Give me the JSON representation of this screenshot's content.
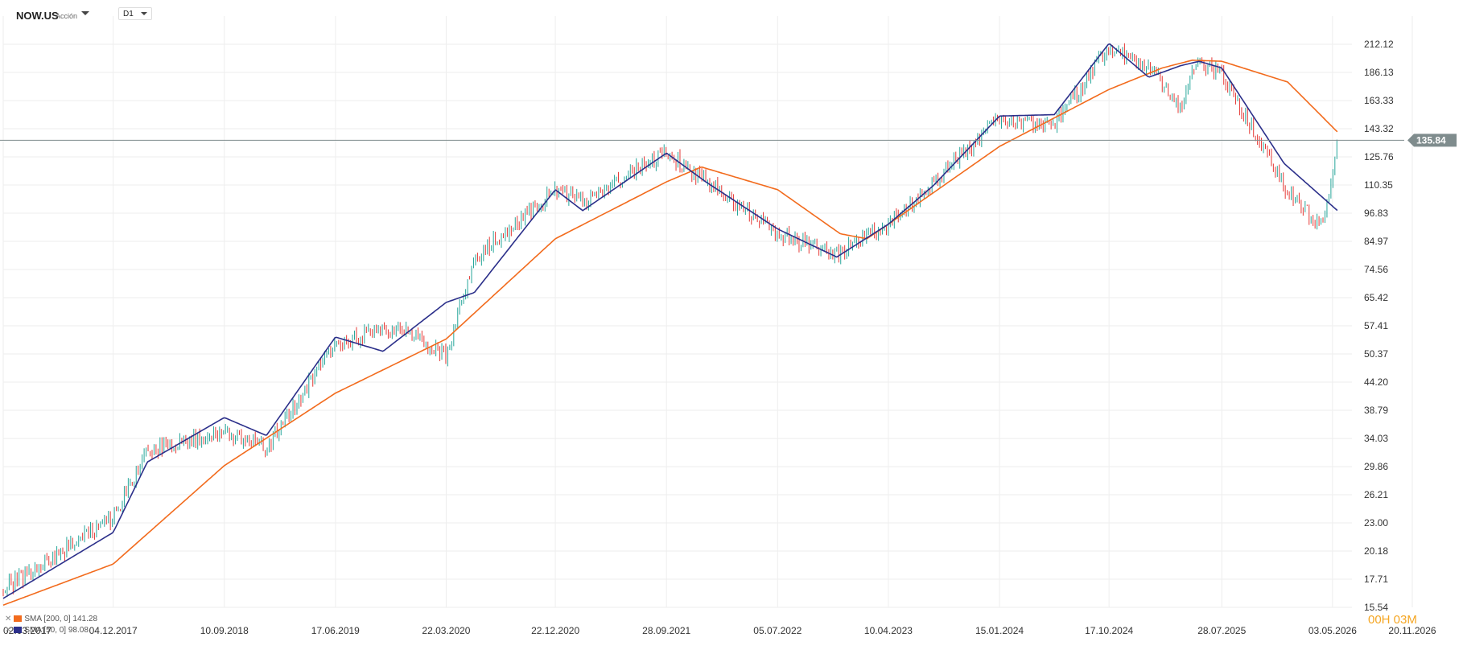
{
  "header": {
    "symbol": "NOW.US",
    "asset_type": "Acción",
    "timeframe": "D1"
  },
  "legend": {
    "sma200": "SMA [200, 0] 141.28",
    "sma50": "SMA [50, 0] 98.08"
  },
  "countdown": "00H 03M",
  "colors": {
    "up": "#26a69a",
    "down": "#e53935",
    "sma200": "#f26b1d",
    "sma50": "#2b2f8a",
    "grid": "#eeeeee",
    "current_price": "#7f8c8d"
  },
  "chart_data": {
    "type": "candlestick",
    "yscale": "log",
    "y_ticks": [
      212.12,
      186.13,
      163.33,
      143.32,
      125.76,
      110.35,
      96.83,
      84.97,
      74.56,
      65.42,
      57.41,
      50.37,
      44.2,
      38.79,
      34.03,
      29.86,
      26.21,
      23.0,
      20.18,
      17.71,
      15.54
    ],
    "x_ticks": [
      "02.03.2017",
      "04.12.2017",
      "10.09.2018",
      "17.06.2019",
      "22.03.2020",
      "22.12.2020",
      "28.09.2021",
      "05.07.2022",
      "10.04.2023",
      "15.01.2024",
      "17.10.2024",
      "28.07.2025",
      "03.05.2026",
      "20.11.2026"
    ],
    "current_price": 135.84,
    "price_anchors": [
      [
        "02.03.2017",
        16.9
      ],
      [
        "04.12.2017",
        23.5
      ],
      [
        "28.02.2018",
        32.0
      ],
      [
        "10.09.2018",
        35.2
      ],
      [
        "25.12.2018",
        32.5
      ],
      [
        "17.06.2019",
        53.0
      ],
      [
        "20.11.2019",
        57.0
      ],
      [
        "22.03.2020",
        50.0
      ],
      [
        "01.06.2020",
        78.0
      ],
      [
        "22.12.2020",
        108.0
      ],
      [
        "01.03.2021",
        102.0
      ],
      [
        "28.09.2021",
        128.0
      ],
      [
        "05.01.2022",
        112.0
      ],
      [
        "05.07.2022",
        88.0
      ],
      [
        "01.12.2022",
        80.0
      ],
      [
        "10.04.2023",
        92.0
      ],
      [
        "01.08.2023",
        112.0
      ],
      [
        "15.01.2024",
        150.0
      ],
      [
        "01.06.2024",
        145.0
      ],
      [
        "17.10.2024",
        210.0
      ],
      [
        "25.01.2025",
        190.0
      ],
      [
        "15.04.2025",
        160.0
      ],
      [
        "01.06.2025",
        198.0
      ],
      [
        "28.07.2025",
        185.0
      ],
      [
        "15.01.2026",
        105.0
      ],
      [
        "10.04.2026",
        90.0
      ],
      [
        "15.05.2026",
        135.84
      ]
    ],
    "sma200_anchors": [
      [
        "02.03.2017",
        15.7
      ],
      [
        "04.12.2017",
        19.0
      ],
      [
        "10.09.2018",
        30.0
      ],
      [
        "17.06.2019",
        42.0
      ],
      [
        "22.03.2020",
        54.0
      ],
      [
        "22.12.2020",
        86.0
      ],
      [
        "28.09.2021",
        112.0
      ],
      [
        "25.12.2021",
        120.0
      ],
      [
        "05.07.2022",
        108.0
      ],
      [
        "10.12.2022",
        88.0
      ],
      [
        "15.02.2023",
        86.0
      ],
      [
        "10.04.2023",
        92.0
      ],
      [
        "15.01.2024",
        132.0
      ],
      [
        "17.10.2024",
        172.0
      ],
      [
        "28.02.2025",
        190.0
      ],
      [
        "15.05.2025",
        197.0
      ],
      [
        "28.07.2025",
        196.0
      ],
      [
        "10.01.2026",
        178.0
      ],
      [
        "15.05.2026",
        141.28
      ]
    ],
    "sma50_anchors": [
      [
        "02.03.2017",
        16.2
      ],
      [
        "04.12.2017",
        22.0
      ],
      [
        "28.02.2018",
        30.5
      ],
      [
        "10.09.2018",
        37.5
      ],
      [
        "25.12.2018",
        34.5
      ],
      [
        "17.06.2019",
        54.5
      ],
      [
        "15.10.2019",
        51.0
      ],
      [
        "22.03.2020",
        64.0
      ],
      [
        "01.06.2020",
        67.0
      ],
      [
        "22.12.2020",
        108.0
      ],
      [
        "01.03.2021",
        98.0
      ],
      [
        "28.09.2021",
        128.0
      ],
      [
        "05.01.2022",
        112.0
      ],
      [
        "05.07.2022",
        90.0
      ],
      [
        "01.12.2022",
        79.0
      ],
      [
        "10.04.2023",
        92.0
      ],
      [
        "01.08.2023",
        110.0
      ],
      [
        "15.01.2024",
        152.0
      ],
      [
        "01.06.2024",
        153.0
      ],
      [
        "17.10.2024",
        213.0
      ],
      [
        "25.01.2025",
        182.0
      ],
      [
        "15.04.2025",
        192.0
      ],
      [
        "01.06.2025",
        196.0
      ],
      [
        "28.07.2025",
        190.0
      ],
      [
        "01.01.2026",
        122.0
      ],
      [
        "15.05.2026",
        98.08
      ]
    ]
  }
}
